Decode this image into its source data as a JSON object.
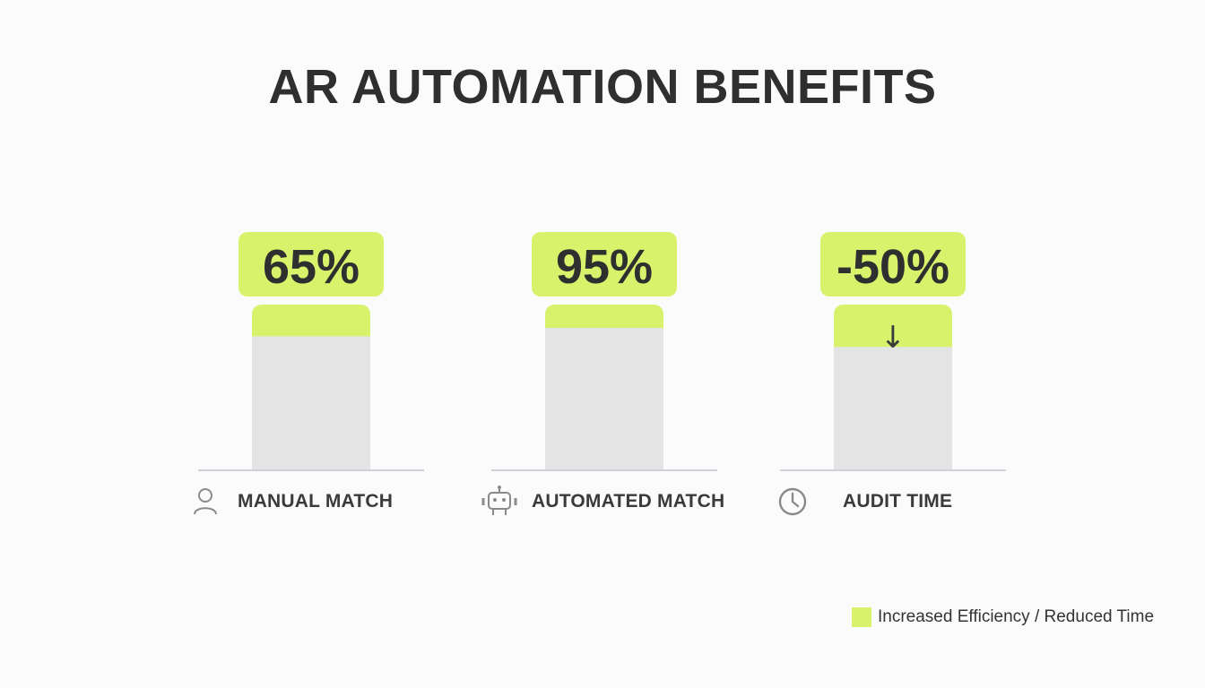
{
  "title": "AR AUTOMATION BENEFITS",
  "colors": {
    "accent": "#d8f36b",
    "bar": "#e4e4e4",
    "baseline": "#d0d0d8",
    "text": "#2f2f2f"
  },
  "categories": [
    {
      "label": "MANUAL MATCH",
      "icon": "person-icon"
    },
    {
      "label": "AUTOMATED MATCH",
      "icon": "robot-icon"
    },
    {
      "label": "AUDIT TIME",
      "icon": "clock-icon"
    }
  ],
  "legend": {
    "label": "Increased Efficiency / Reduced Time"
  },
  "chart_data": {
    "type": "bar",
    "title": "AR AUTOMATION BENEFITS",
    "categories": [
      "MANUAL MATCH",
      "AUTOMATED MATCH",
      "AUDIT TIME"
    ],
    "series": [
      {
        "name": "Increased Efficiency / Reduced Time",
        "values": [
          65,
          95,
          -50
        ]
      }
    ],
    "data_labels": [
      "65%",
      "95%",
      "-50%"
    ],
    "annotations": [
      "↓"
    ],
    "legend": "bottom-right",
    "grid": false
  }
}
